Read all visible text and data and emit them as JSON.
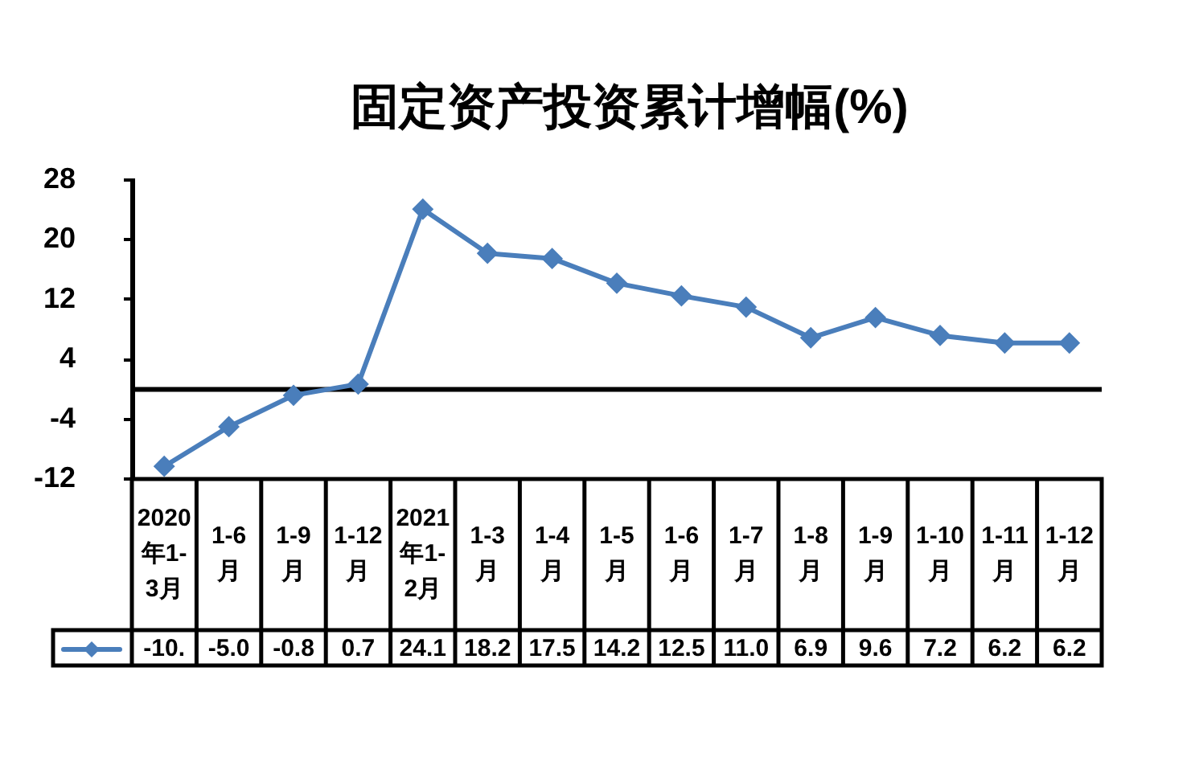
{
  "chart_data": {
    "type": "line",
    "title": "固定资产投资累计增幅(%)",
    "categories": [
      "2020年1-3月",
      "1-6月",
      "1-9月",
      "1-12月",
      "2021年1-2月",
      "1-3月",
      "1-4月",
      "1-5月",
      "1-6月",
      "1-7月",
      "1-8月",
      "1-9月",
      "1-10月",
      "1-11月",
      "1-12月"
    ],
    "series": [
      {
        "color": "#4a7ebb",
        "values": [
          -10.3,
          -5.0,
          -0.8,
          0.7,
          24.1,
          18.2,
          17.5,
          14.2,
          12.5,
          11.0,
          6.9,
          9.6,
          7.2,
          6.2,
          6.2
        ],
        "value_labels": [
          "-10.",
          "-5.0",
          "-0.8",
          "0.7",
          "24.1",
          "18.2",
          "17.5",
          "14.2",
          "12.5",
          "11.0",
          "6.9",
          "9.6",
          "7.2",
          "6.2",
          "6.2"
        ]
      }
    ],
    "ylim": [
      -12,
      28
    ],
    "yticks": [
      -12,
      -4,
      4,
      12,
      20,
      28
    ],
    "grid": false,
    "marker": "diamond",
    "line_style": "solid",
    "ref_lines": [
      {
        "axis": "y",
        "value": 0,
        "color": "#000000"
      }
    ]
  }
}
